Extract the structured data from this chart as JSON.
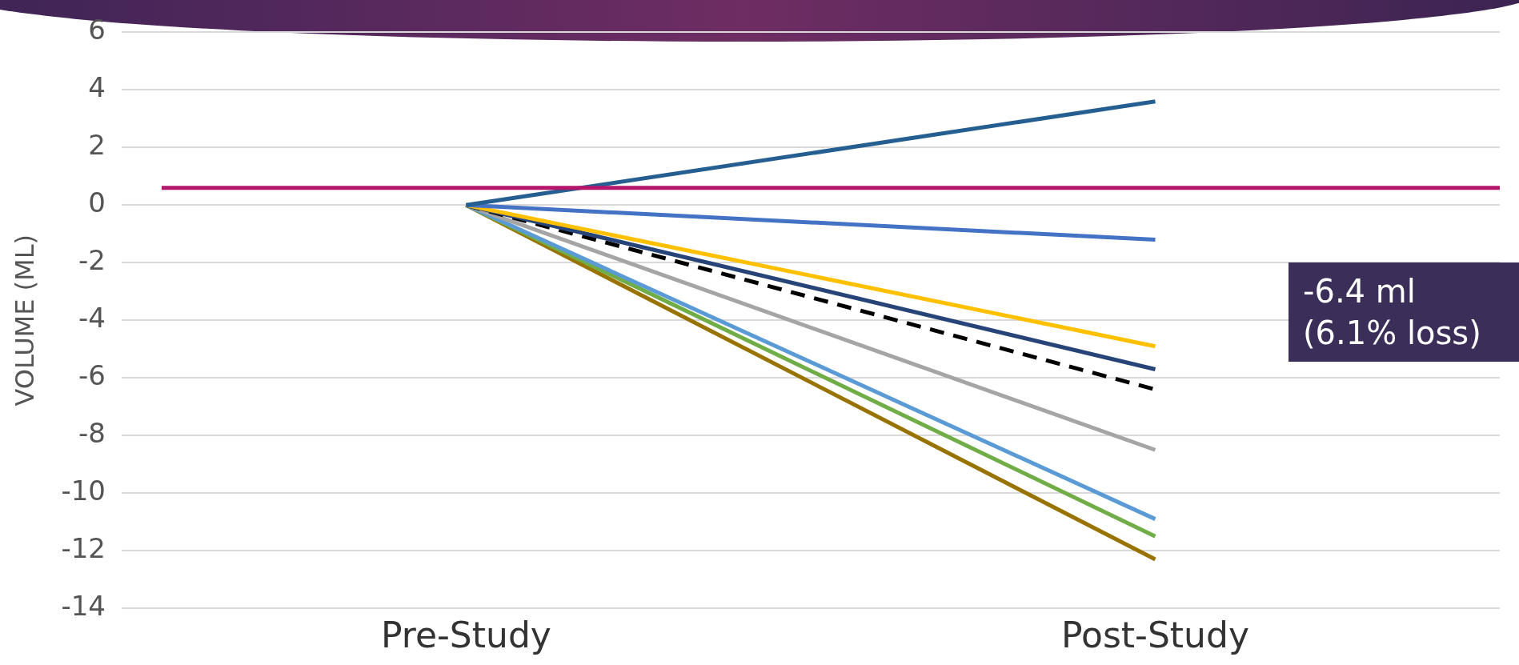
{
  "chart_data": {
    "type": "line",
    "ylabel": "VOLUME (ML)",
    "categories": [
      "Pre-Study",
      "Post-Study"
    ],
    "series": [
      {
        "color": "#255e91",
        "values": [
          0,
          3.6
        ]
      },
      {
        "color": "#4472c4",
        "values": [
          0,
          -1.2
        ]
      },
      {
        "color": "#ffc000",
        "values": [
          0,
          -4.9
        ]
      },
      {
        "color": "#264478",
        "values": [
          0,
          -5.7
        ]
      },
      {
        "color": "#000000",
        "values": [
          0,
          -6.4
        ],
        "line_style": "dashed"
      },
      {
        "color": "#a5a5a5",
        "values": [
          0,
          -8.5
        ]
      },
      {
        "color": "#5b9bd5",
        "values": [
          0,
          -10.9
        ]
      },
      {
        "color": "#70ad47",
        "values": [
          0,
          -11.5
        ]
      },
      {
        "color": "#997300",
        "values": [
          0,
          -12.3
        ]
      }
    ],
    "ylim": [
      -14,
      6
    ],
    "yticks": [
      -14,
      -12,
      -10,
      -8,
      -6,
      -4,
      -2,
      0,
      2,
      4,
      6
    ],
    "grid": "y",
    "legend": false,
    "marker": "none",
    "ref_lines": [
      {
        "axis": "y",
        "value": 0.6,
        "color": "#b5166b"
      }
    ],
    "annotations": [
      "-6.4 ml (6.1% loss)"
    ]
  }
}
